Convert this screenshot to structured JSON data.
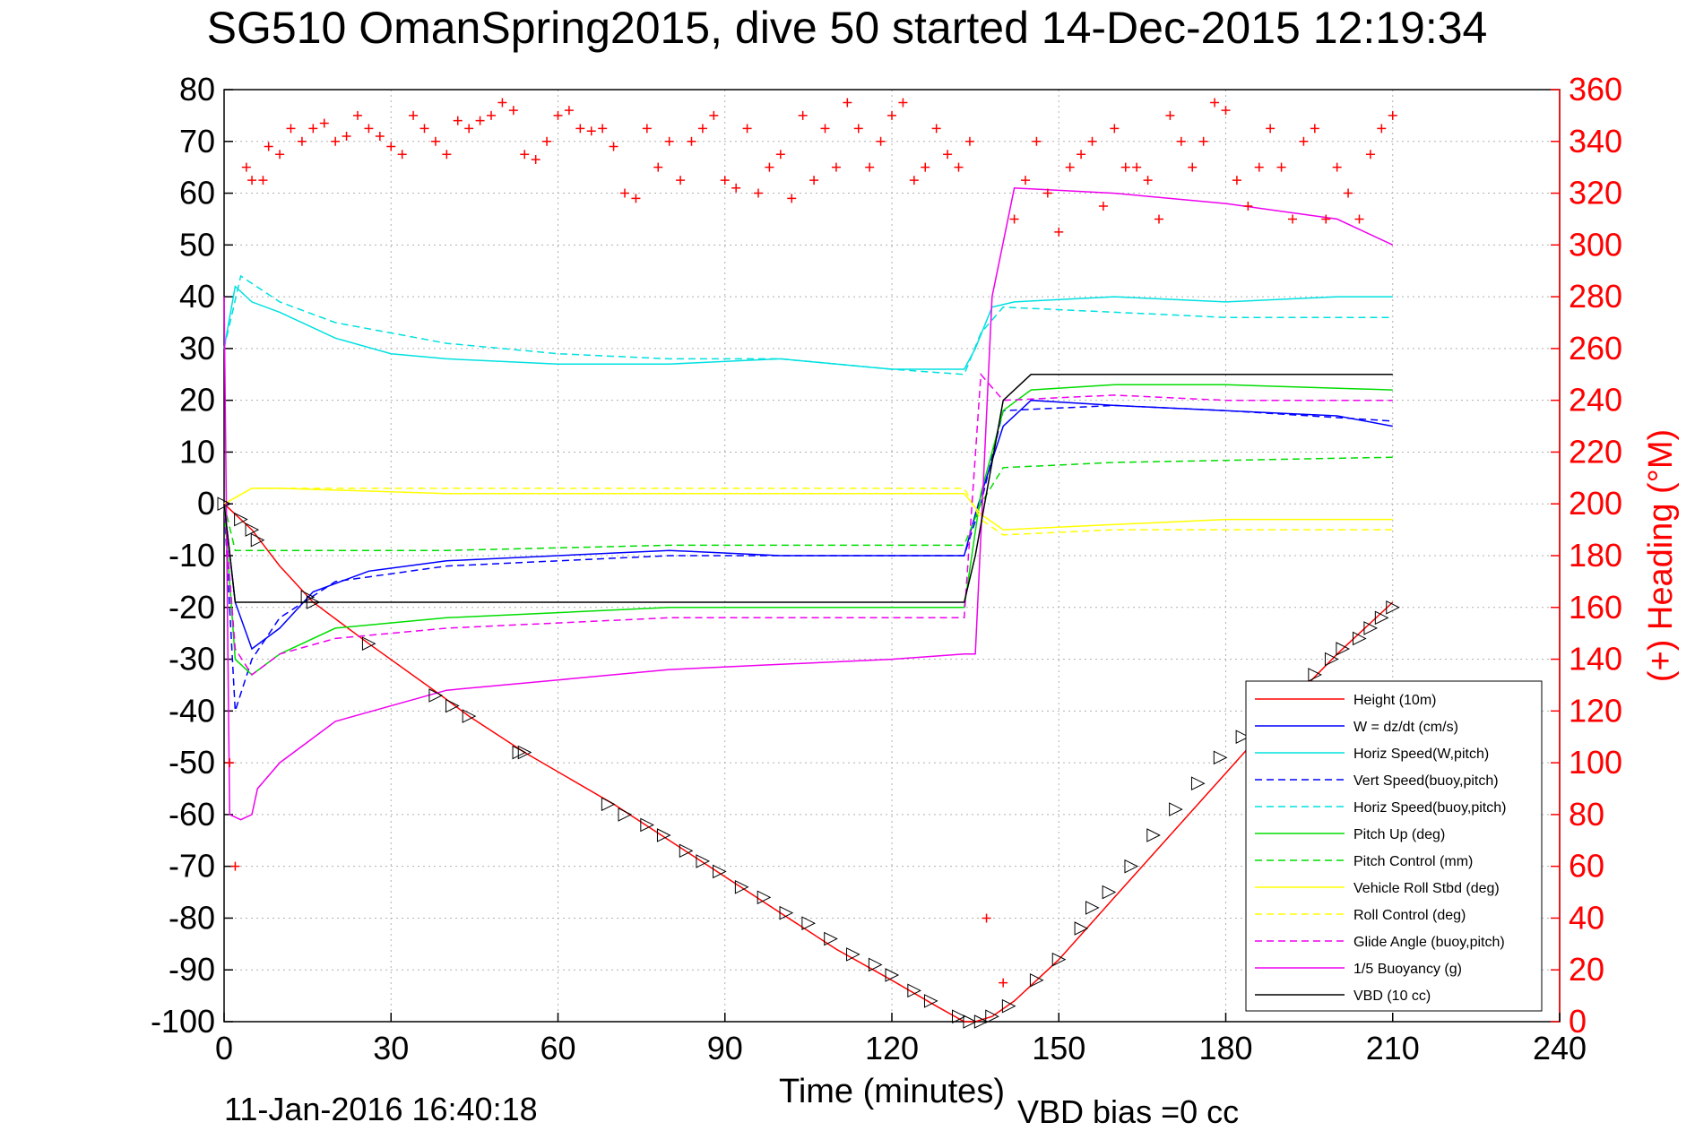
{
  "chart_data": {
    "type": "line",
    "title": "SG510 OmanSpring2015, dive 50 started 14-Dec-2015 12:19:34",
    "xlabel": "Time (minutes)",
    "ylabel": "",
    "y2label": "(+) Heading (°M)",
    "xlim": [
      0,
      240
    ],
    "ylim": [
      -100,
      80
    ],
    "y2lim": [
      0,
      360
    ],
    "xticks": [
      "0",
      "30",
      "60",
      "90",
      "120",
      "150",
      "180",
      "210",
      "240"
    ],
    "yticks": [
      "80",
      "70",
      "60",
      "50",
      "40",
      "30",
      "20",
      "10",
      "0",
      "-10",
      "-20",
      "-30",
      "-40",
      "-50",
      "-60",
      "-70",
      "-80",
      "-90",
      "-100"
    ],
    "y2ticks": [
      "360",
      "340",
      "320",
      "300",
      "280",
      "260",
      "240",
      "220",
      "200",
      "180",
      "160",
      "140",
      "120",
      "100",
      "80",
      "60",
      "40",
      "20",
      "0"
    ],
    "grid": true,
    "legend_position": "lower-right",
    "footer_left": "11-Jan-2016 16:40:18",
    "footer_right": "VBD bias =0 cc",
    "series": [
      {
        "name": "Height (10m)",
        "color": "#ff0000",
        "style": "solid",
        "x": [
          0,
          5,
          10,
          16,
          26,
          39,
          44,
          54,
          70,
          80,
          90,
          100,
          110,
          120,
          128,
          133,
          135,
          138,
          142,
          150,
          160,
          170,
          180,
          190,
          200,
          210
        ],
        "y": [
          0,
          -5,
          -12,
          -19,
          -27,
          -37,
          -41,
          -48,
          -58,
          -65,
          -72,
          -79,
          -86,
          -92,
          -97,
          -100,
          -100,
          -99,
          -96,
          -88,
          -76,
          -64,
          -52,
          -40,
          -29,
          -19
        ]
      },
      {
        "name": "W = dz/dt (cm/s)",
        "color": "#0000ff",
        "style": "solid",
        "x": [
          0,
          2,
          5,
          10,
          16,
          26,
          40,
          60,
          80,
          100,
          120,
          133,
          135,
          137,
          140,
          145,
          160,
          180,
          200,
          210
        ],
        "y": [
          0,
          -19,
          -28,
          -24,
          -17,
          -13,
          -11,
          -10,
          -9,
          -10,
          -10,
          -10,
          -2,
          5,
          15,
          20,
          19,
          18,
          17,
          15
        ]
      },
      {
        "name": "Horiz Speed(W,pitch)",
        "color": "#00e0e0",
        "style": "solid",
        "x": [
          0,
          2,
          5,
          10,
          20,
          30,
          40,
          60,
          80,
          100,
          120,
          133,
          135,
          138,
          142,
          160,
          180,
          200,
          210
        ],
        "y": [
          30,
          42,
          39,
          37,
          32,
          29,
          28,
          27,
          27,
          28,
          26,
          26,
          30,
          38,
          39,
          40,
          39,
          40,
          40
        ]
      },
      {
        "name": "Vert Speed(buoy,pitch)",
        "color": "#0000ff",
        "style": "dashed",
        "x": [
          0,
          2,
          5,
          10,
          20,
          40,
          60,
          80,
          100,
          120,
          133,
          136,
          140,
          160,
          180,
          210
        ],
        "y": [
          0,
          -40,
          -30,
          -22,
          -15,
          -12,
          -11,
          -10,
          -10,
          -10,
          -10,
          0,
          18,
          19,
          18,
          16
        ]
      },
      {
        "name": "Horiz Speed(buoy,pitch)",
        "color": "#00e0e0",
        "style": "dashed",
        "x": [
          0,
          3,
          10,
          20,
          40,
          60,
          80,
          100,
          120,
          133,
          136,
          140,
          160,
          180,
          210
        ],
        "y": [
          30,
          44,
          39,
          35,
          31,
          29,
          28,
          28,
          26,
          25,
          33,
          38,
          37,
          36,
          36
        ]
      },
      {
        "name": "Pitch Up (deg)",
        "color": "#00dd00",
        "style": "solid",
        "x": [
          0,
          2,
          5,
          10,
          20,
          40,
          60,
          80,
          100,
          120,
          133,
          136,
          140,
          145,
          160,
          180,
          210
        ],
        "y": [
          0,
          -30,
          -33,
          -29,
          -24,
          -22,
          -21,
          -20,
          -20,
          -20,
          -20,
          2,
          18,
          22,
          23,
          23,
          22
        ]
      },
      {
        "name": "Pitch Control (mm)",
        "color": "#00dd00",
        "style": "dashed",
        "x": [
          0,
          2,
          10,
          40,
          80,
          120,
          133,
          136,
          140,
          160,
          210
        ],
        "y": [
          0,
          -9,
          -9,
          -9,
          -8,
          -8,
          -8,
          0,
          7,
          8,
          9
        ]
      },
      {
        "name": "Vehicle Roll Stbd (deg)",
        "color": "#ffff00",
        "style": "solid",
        "x": [
          0,
          5,
          10,
          40,
          80,
          120,
          133,
          136,
          140,
          160,
          180,
          210
        ],
        "y": [
          0,
          3,
          3,
          2,
          2,
          2,
          2,
          -2,
          -5,
          -4,
          -3,
          -3
        ]
      },
      {
        "name": "Roll Control (deg)",
        "color": "#ffff00",
        "style": "dashed",
        "x": [
          0,
          5,
          10,
          40,
          80,
          120,
          133,
          136,
          140,
          160,
          210
        ],
        "y": [
          0,
          3,
          3,
          3,
          3,
          3,
          3,
          -3,
          -6,
          -5,
          -5
        ]
      },
      {
        "name": "Glide Angle (buoy,pitch)",
        "color": "#ee00ee",
        "style": "dashed",
        "x": [
          0,
          2,
          5,
          10,
          20,
          40,
          60,
          80,
          100,
          120,
          133,
          136,
          140,
          160,
          180,
          210
        ],
        "y": [
          0,
          -28,
          -33,
          -29,
          -26,
          -24,
          -23,
          -22,
          -22,
          -22,
          -22,
          25,
          20,
          21,
          20,
          20
        ]
      },
      {
        "name": "1/5 Buoyancy (g)",
        "color": "#ee00ee",
        "style": "solid",
        "x": [
          0,
          1,
          3,
          5,
          6,
          10,
          20,
          40,
          60,
          80,
          100,
          120,
          133,
          135,
          138,
          142,
          160,
          180,
          200,
          210
        ],
        "y": [
          40,
          -60,
          -61,
          -60,
          -55,
          -50,
          -42,
          -36,
          -34,
          -32,
          -31,
          -30,
          -29,
          -29,
          40,
          61,
          60,
          58,
          55,
          50
        ]
      },
      {
        "name": "VBD (10 cc)",
        "color": "#000000",
        "style": "solid",
        "x": [
          0,
          2,
          10,
          40,
          80,
          120,
          133,
          135,
          140,
          145,
          160,
          180,
          210
        ],
        "y": [
          0,
          -19,
          -19,
          -19,
          -19,
          -19,
          -19,
          -10,
          20,
          25,
          25,
          25,
          25
        ]
      }
    ],
    "heading": {
      "name": "(+) Heading",
      "color": "#ff0000",
      "marker": "+",
      "axis": "right",
      "x": [
        1,
        2,
        4,
        5,
        7,
        8,
        10,
        12,
        14,
        16,
        18,
        20,
        22,
        24,
        26,
        28,
        30,
        32,
        34,
        36,
        38,
        40,
        42,
        44,
        46,
        48,
        50,
        52,
        54,
        56,
        58,
        60,
        62,
        64,
        66,
        68,
        70,
        72,
        74,
        76,
        78,
        80,
        82,
        84,
        86,
        88,
        90,
        92,
        94,
        96,
        98,
        100,
        102,
        104,
        106,
        108,
        110,
        112,
        114,
        116,
        118,
        120,
        122,
        124,
        126,
        128,
        130,
        132,
        134,
        137,
        140,
        142,
        144,
        146,
        148,
        150,
        152,
        154,
        156,
        158,
        160,
        162,
        164,
        166,
        168,
        170,
        172,
        174,
        176,
        178,
        180,
        182,
        184,
        186,
        188,
        190,
        192,
        194,
        196,
        198,
        200,
        202,
        204,
        206,
        208,
        210
      ],
      "y": [
        100,
        60,
        330,
        325,
        325,
        338,
        335,
        345,
        340,
        345,
        347,
        340,
        342,
        350,
        345,
        342,
        338,
        335,
        350,
        345,
        340,
        335,
        348,
        345,
        348,
        350,
        355,
        352,
        335,
        333,
        340,
        350,
        352,
        345,
        344,
        345,
        338,
        320,
        318,
        345,
        330,
        340,
        325,
        340,
        345,
        350,
        325,
        322,
        345,
        320,
        330,
        335,
        318,
        350,
        325,
        345,
        330,
        355,
        345,
        330,
        340,
        350,
        355,
        325,
        330,
        345,
        335,
        330,
        340,
        40,
        15,
        310,
        325,
        340,
        320,
        305,
        330,
        335,
        340,
        315,
        345,
        330,
        330,
        325,
        310,
        350,
        340,
        330,
        340,
        355,
        352,
        325,
        315,
        330,
        345,
        330,
        310,
        340,
        345,
        310,
        330,
        320,
        310,
        335,
        345,
        350
      ]
    },
    "depth_markers": {
      "marker": "triangle",
      "color": "#000000",
      "x": [
        0,
        3,
        5,
        6,
        15,
        16,
        26,
        38,
        41,
        44,
        53,
        54,
        69,
        72,
        76,
        79,
        83,
        86,
        89,
        93,
        97,
        101,
        105,
        109,
        113,
        117,
        120,
        124,
        127,
        132,
        134,
        136,
        138,
        141,
        146,
        150,
        154,
        156,
        159,
        163,
        167,
        171,
        175,
        179,
        183,
        196,
        199,
        201,
        204,
        206,
        208,
        210
      ],
      "y": [
        0,
        -3,
        -5,
        -7,
        -18,
        -19,
        -27,
        -37,
        -39,
        -41,
        -48,
        -48,
        -58,
        -60,
        -62,
        -64,
        -67,
        -69,
        -71,
        -74,
        -76,
        -79,
        -81,
        -84,
        -87,
        -89,
        -91,
        -94,
        -96,
        -99,
        -100,
        -100,
        -99,
        -97,
        -92,
        -88,
        -82,
        -78,
        -75,
        -70,
        -64,
        -59,
        -54,
        -49,
        -45,
        -33,
        -30,
        -28,
        -26,
        -24,
        -22,
        -20
      ]
    }
  }
}
